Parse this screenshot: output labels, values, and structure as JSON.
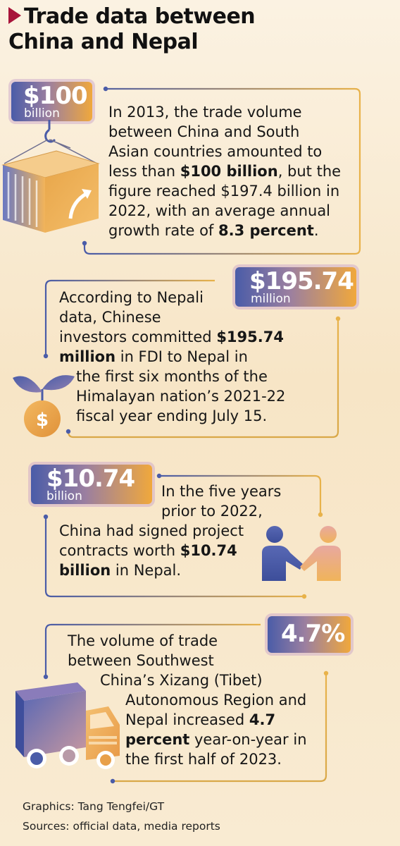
{
  "title": {
    "line1": "Trade data between",
    "line2": "China and Nepal"
  },
  "colors": {
    "accent": "#a8143a",
    "line_blue": "#4a5ca8",
    "line_gold": "#e8b24a",
    "badge_start": "#4a5ca8",
    "badge_end": "#f0a83c"
  },
  "sections": [
    {
      "badge_value": "$100",
      "badge_unit": "billion",
      "icon": "shipping-container-icon",
      "t1": "In 2013, the trade volume",
      "t2": "between China and South",
      "t3": "Asian countries amounted to",
      "t4a": "less than ",
      "t4b": "$100 billion",
      "t4c": ", but the",
      "t5": "figure reached $197.4 billion in",
      "t6": "2022, with an average annual",
      "t7a": "growth rate of ",
      "t7b": "8.3 percent",
      "t7c": "."
    },
    {
      "badge_value": "$195.74",
      "badge_unit": "million",
      "icon": "money-sprout-icon",
      "t1": "According to Nepali",
      "t2": "data, Chinese",
      "t3a": "investors committed ",
      "t3b": "$195.74",
      "t4a": "million",
      "t4b": " in FDI to Nepal in",
      "t5": "the first six months of the",
      "t6": "Himalayan nation’s 2021-22",
      "t7": "fiscal year ending July 15."
    },
    {
      "badge_value": "$10.74",
      "badge_unit": "billion",
      "icon": "handshake-icon",
      "t1": "In the five years",
      "t2": "prior to 2022,",
      "t3": "China had signed project",
      "t4a": "contracts worth ",
      "t4b": "$10.74",
      "t5a": "billion",
      "t5b": " in Nepal."
    },
    {
      "badge_value": "4.7%",
      "icon": "truck-icon",
      "t1": "The volume of trade",
      "t2": "between Southwest",
      "t3": "China’s Xizang (Tibet)",
      "t4": "Autonomous Region and",
      "t5a": "Nepal increased ",
      "t5b": "4.7",
      "t6a": "percent",
      "t6b": " year-on-year in",
      "t7": "the first half of 2023."
    }
  ],
  "credits": {
    "graphics": "Graphics: Tang Tengfei/GT",
    "sources": "Sources: official data, media reports"
  }
}
